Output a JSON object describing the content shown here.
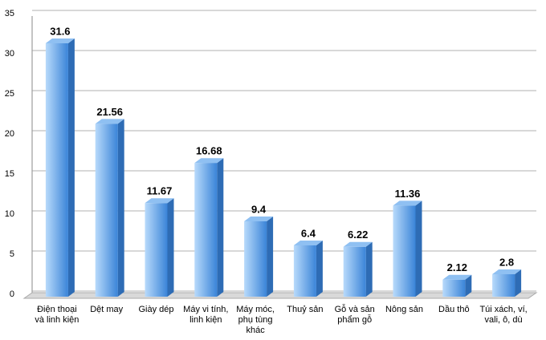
{
  "chart_data": {
    "type": "bar",
    "categories": [
      "Điện thoại và linh kiện",
      "Dệt may",
      "Giày dép",
      "Máy vi tính, linh kiện",
      "Máy móc, phụ tùng khác",
      "Thuỷ sản",
      "Gỗ và sản phẩm gỗ",
      "Nông sản",
      "Dầu thô",
      "Túi xách, ví, vali, ô, dù"
    ],
    "values": [
      31.6,
      21.56,
      11.67,
      16.68,
      9.4,
      6.4,
      6.22,
      11.36,
      2.12,
      2.8
    ],
    "color": "#3a84d8",
    "ylim": [
      0,
      35
    ],
    "yticks": [
      0,
      5,
      10,
      15,
      20,
      25,
      30,
      35
    ],
    "grid": true
  }
}
